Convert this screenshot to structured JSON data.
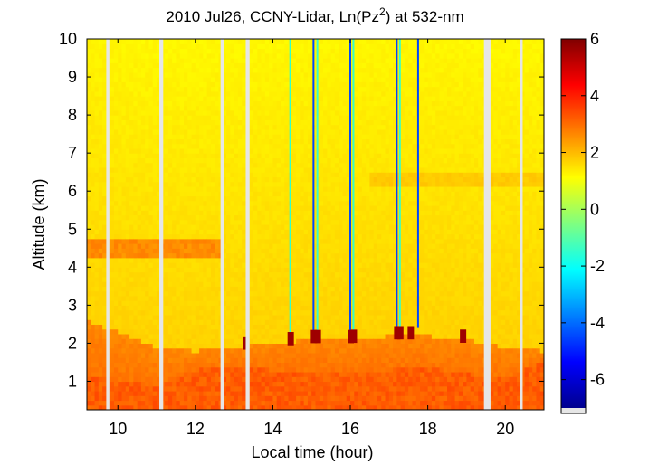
{
  "chart_data": {
    "type": "heatmap",
    "title_main": "2010 Jul26, CCNY-Lidar, Ln(Pz",
    "title_sup": "2",
    "title_end": ") at 532-nm",
    "xlabel": "Local time (hour)",
    "ylabel": "Altitude (km)",
    "xlim": [
      9.2,
      21.0
    ],
    "ylim": [
      0.25,
      10
    ],
    "xticks": [
      10,
      12,
      14,
      16,
      18,
      20
    ],
    "yticks": [
      1,
      2,
      3,
      4,
      5,
      6,
      7,
      8,
      9,
      10
    ],
    "colorbar": {
      "clim": [
        -7,
        6
      ],
      "ticks": [
        6,
        4,
        2,
        0,
        -2,
        -4,
        -6
      ],
      "colormap": "jet"
    },
    "data_gaps_hours": [
      [
        9.7,
        9.78
      ],
      [
        11.07,
        11.17
      ],
      [
        12.65,
        12.75
      ],
      [
        13.3,
        13.4
      ],
      [
        19.45,
        19.62
      ],
      [
        20.37,
        20.45
      ]
    ],
    "layers": [
      {
        "name": "boundary layer",
        "t": [
          9.2,
          10,
          11,
          12,
          13,
          14,
          15,
          16,
          17,
          18,
          19,
          19.5,
          20,
          21
        ],
        "top_km": [
          2.6,
          2.3,
          1.9,
          1.8,
          1.9,
          2.0,
          2.1,
          2.1,
          2.2,
          2.2,
          2.1,
          2.0,
          1.9,
          1.8
        ],
        "value": 2.9
      },
      {
        "name": "surface layer",
        "t": [
          9.2,
          10,
          11,
          12,
          13,
          14,
          15,
          16,
          17,
          18,
          19,
          20,
          21
        ],
        "top_km": [
          1.2,
          1.0,
          0.9,
          1.3,
          1.4,
          1.3,
          1.3,
          1.3,
          1.3,
          1.4,
          1.2,
          1.1,
          1.5
        ],
        "value": 3.2
      },
      {
        "name": "aerosol layer 4.5 km",
        "t_start": 9.2,
        "t_end": 12.7,
        "z_km": [
          4.3,
          4.7
        ],
        "value": 2.6
      },
      {
        "name": "aerosol layer 6.3 km",
        "t_start": 16.5,
        "t_end": 21.0,
        "z_km": [
          6.1,
          6.5
        ],
        "value": 1.8
      }
    ],
    "cloud_streaks_hours": [
      14.45,
      15.05,
      15.15,
      16.0,
      16.08,
      17.2,
      17.28,
      17.75
    ],
    "cloud_base_hours": [
      13.3,
      14.45,
      15.05,
      15.15,
      16.0,
      16.08,
      17.2,
      17.28,
      17.55,
      18.9
    ]
  }
}
